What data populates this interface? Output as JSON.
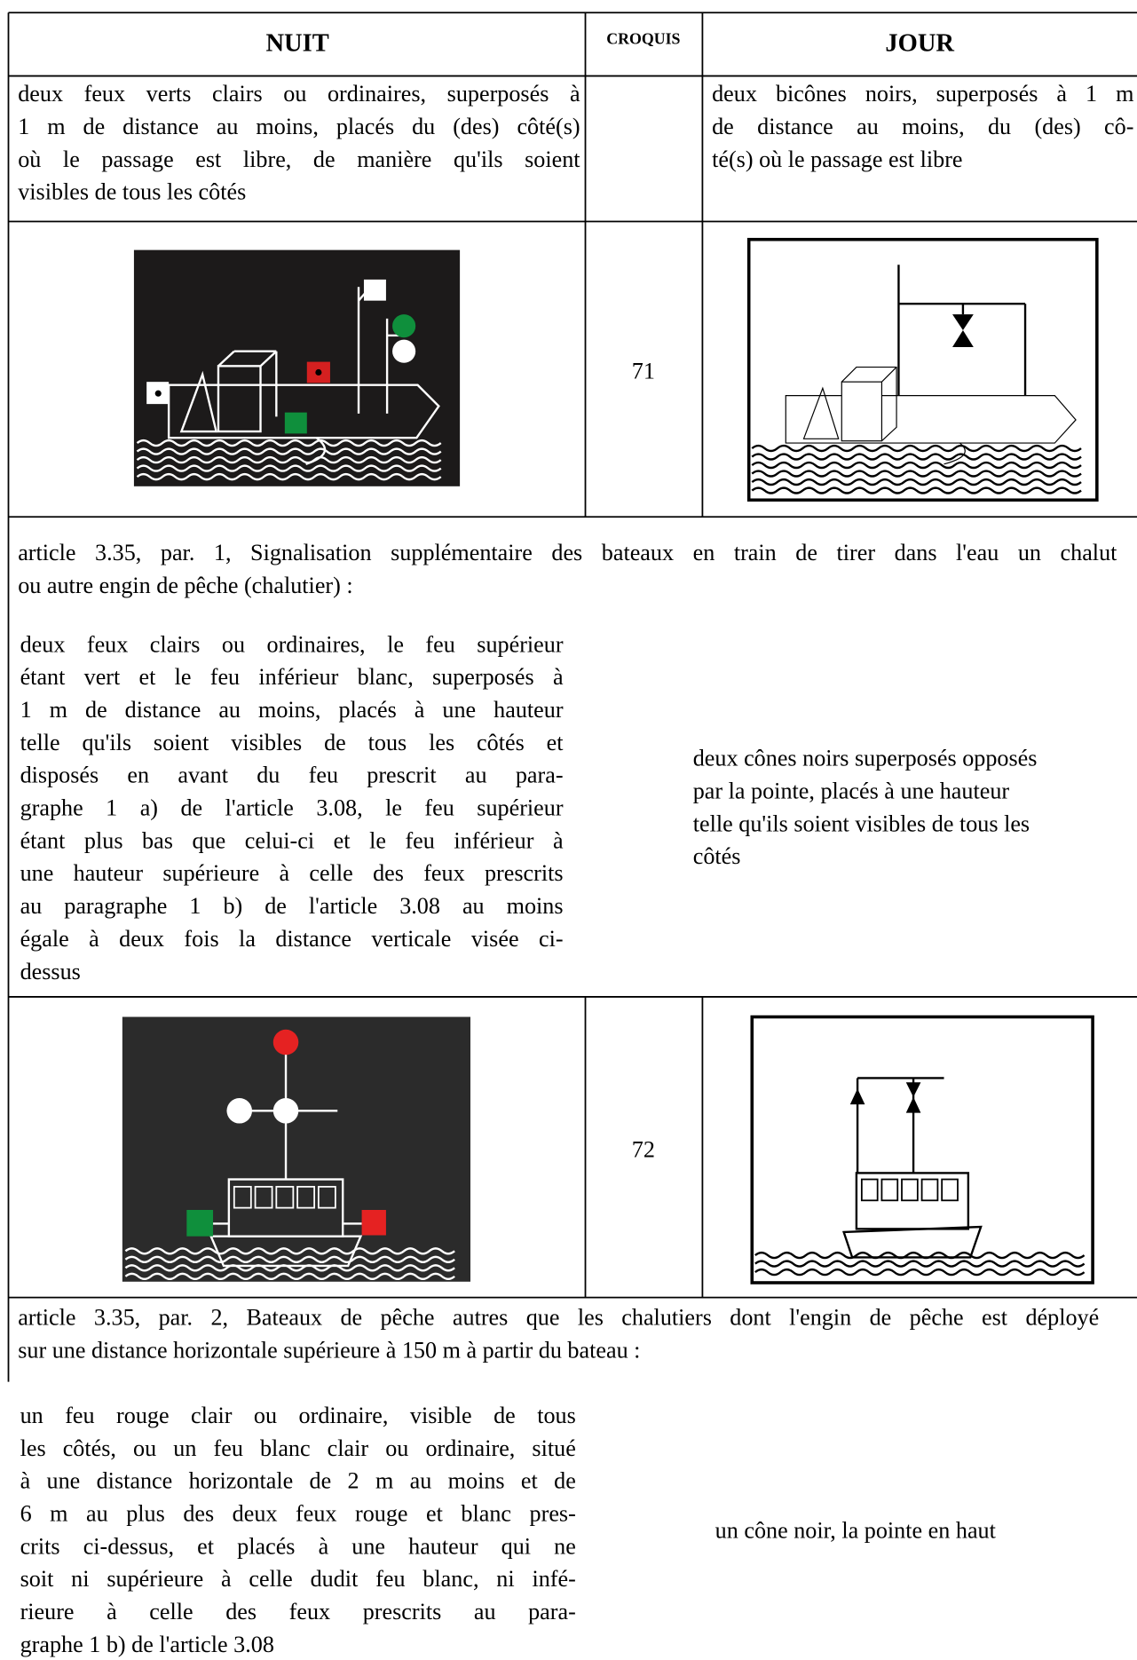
{
  "header": {
    "nuit": "NUIT",
    "croquis": "CROQUIS",
    "jour": "JOUR"
  },
  "sections": [
    {
      "nuit": [
        "deux feux verts clairs ou ordinaires, superposés à",
        "1 m de distance au moins, placés du (des) côté(s)",
        "où le passage est libre, de manière qu'ils soient",
        "visibles de tous les côtés"
      ],
      "jour": [
        "deux bicônes noirs, superposés à 1 m",
        "de distance au moins, du (des) cô-",
        "té(s) où le passage est libre"
      ],
      "croquis": "71"
    },
    {
      "article": [
        "article 3.35, par. 1, Signalisation supplémentaire des bateaux en train de tirer dans l'eau un chalut",
        "ou autre engin de pêche (chalutier) :"
      ],
      "nuit": [
        "deux feux clairs ou ordinaires, le feu supérieur",
        "étant vert et le feu inférieur blanc, superposés à",
        "1 m de distance au moins, placés à une hauteur",
        "telle qu'ils soient visibles de tous les côtés et",
        "disposés en avant du feu prescrit au para-",
        "graphe 1 a) de l'article 3.08, le feu supérieur",
        "étant plus bas que celui-ci et le feu inférieur à",
        "une hauteur supérieure à celle des feux prescrits",
        "au paragraphe 1 b) de l'article 3.08 au moins",
        "égale à deux fois la distance verticale visée ci-",
        "dessus"
      ],
      "jour": [
        "deux cônes noirs superposés opposés",
        "par la pointe, placés à une hauteur",
        "telle qu'ils soient visibles de tous les",
        "côtés"
      ],
      "croquis": "72"
    },
    {
      "article": [
        "article 3.35, par. 2, Bateaux de pêche autres que les chalutiers dont l'engin de pêche est déployé",
        "sur une distance horizontale supérieure à 150 m à partir du bateau :"
      ],
      "nuit": [
        "un feu rouge clair ou ordinaire, visible de tous",
        "les côtés, ou un feu blanc clair ou ordinaire, situé",
        "à une distance horizontale de 2 m au moins et de",
        "6 m au plus des deux feux rouge et blanc pres-",
        "crits ci-dessus, et placés à une hauteur qui ne",
        "soit ni supérieure à celle dudit feu blanc, ni infé-",
        "rieure à celle des feux prescrits au para-",
        "graphe 1 b) de l'article 3.08"
      ],
      "jour": [
        "un cône noir, la pointe en haut"
      ]
    }
  ]
}
